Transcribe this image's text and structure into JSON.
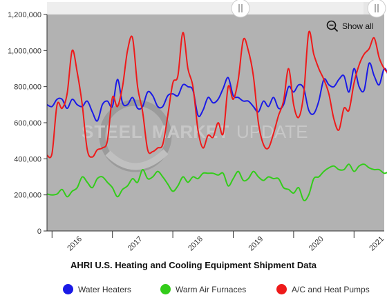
{
  "chart_data": {
    "type": "line",
    "title": "AHRI U.S. Heating and Cooling Equipment Shipment Data",
    "xlabel": "",
    "ylabel": "",
    "x_start": "2015-12",
    "x_end": "2021-07",
    "x_tick_labels": [
      "2016",
      "2017",
      "2018",
      "2019",
      "2020",
      "2021"
    ],
    "y_tick_labels": [
      "0",
      "200,000",
      "400,000",
      "600,000",
      "800,000",
      "1,000,000",
      "1,200,000"
    ],
    "ylim": [
      0,
      1200000
    ],
    "grid": false,
    "legend_position": "bottom",
    "series": [
      {
        "name": "Water Heaters",
        "color": "#1a1ae6",
        "values": [
          700000,
          690000,
          730000,
          730000,
          680000,
          730000,
          700000,
          690000,
          720000,
          660000,
          610000,
          700000,
          720000,
          690000,
          840000,
          710000,
          700000,
          740000,
          680000,
          690000,
          770000,
          750000,
          690000,
          690000,
          750000,
          760000,
          750000,
          810000,
          800000,
          780000,
          640000,
          670000,
          740000,
          710000,
          730000,
          790000,
          850000,
          750000,
          740000,
          720000,
          720000,
          690000,
          660000,
          720000,
          690000,
          740000,
          680000,
          700000,
          800000,
          770000,
          810000,
          790000,
          670000,
          650000,
          720000,
          840000,
          810000,
          800000,
          840000,
          860000,
          770000,
          900000,
          800000,
          780000,
          930000,
          860000,
          810000,
          900000,
          850000,
          790000,
          880000,
          930000,
          790000
        ]
      },
      {
        "name": "Warm Air Furnaces",
        "color": "#33cc1a",
        "values": [
          205000,
          200000,
          205000,
          230000,
          190000,
          220000,
          240000,
          300000,
          270000,
          240000,
          290000,
          300000,
          270000,
          240000,
          190000,
          230000,
          250000,
          290000,
          270000,
          340000,
          290000,
          300000,
          330000,
          300000,
          260000,
          220000,
          250000,
          300000,
          270000,
          300000,
          290000,
          320000,
          320000,
          320000,
          310000,
          320000,
          250000,
          290000,
          330000,
          280000,
          290000,
          330000,
          300000,
          280000,
          300000,
          290000,
          290000,
          240000,
          230000,
          210000,
          240000,
          170000,
          200000,
          290000,
          300000,
          330000,
          350000,
          360000,
          340000,
          340000,
          370000,
          330000,
          360000,
          370000,
          350000,
          340000,
          340000,
          320000,
          330000,
          340000,
          350000,
          340000,
          330000
        ]
      },
      {
        "name": "A/C and Heat Pumps",
        "color": "#ee1a1a",
        "values": [
          420000,
          430000,
          700000,
          680000,
          760000,
          1000000,
          880000,
          700000,
          450000,
          410000,
          450000,
          460000,
          500000,
          740000,
          690000,
          800000,
          1000000,
          1070000,
          800000,
          660000,
          450000,
          440000,
          460000,
          480000,
          640000,
          820000,
          860000,
          1100000,
          900000,
          800000,
          560000,
          460000,
          530000,
          520000,
          600000,
          540000,
          800000,
          730000,
          840000,
          1060000,
          1000000,
          860000,
          600000,
          480000,
          460000,
          540000,
          640000,
          720000,
          900000,
          700000,
          630000,
          760000,
          1100000,
          980000,
          900000,
          840000,
          760000,
          620000,
          560000,
          680000,
          670000,
          820000,
          920000,
          980000,
          1010000,
          1070000,
          960000,
          900000,
          870000,
          860000,
          830000,
          780000,
          670000
        ]
      }
    ]
  },
  "legend": {
    "items": [
      {
        "label": "Water Heaters",
        "color": "#1a1ae6"
      },
      {
        "label": "Warm Air Furnaces",
        "color": "#33cc1a"
      },
      {
        "label": "A/C and Heat Pumps",
        "color": "#ee1a1a"
      }
    ]
  },
  "toolbar": {
    "show_all_label": "Show all",
    "navigator_handle_icon": "scroll-handle-icon"
  },
  "watermark": {
    "text": "STEELMARKET UPDATE"
  },
  "colors": {
    "plot_background": "#b2b2b2",
    "navigator_background": "#e6e6e6"
  }
}
